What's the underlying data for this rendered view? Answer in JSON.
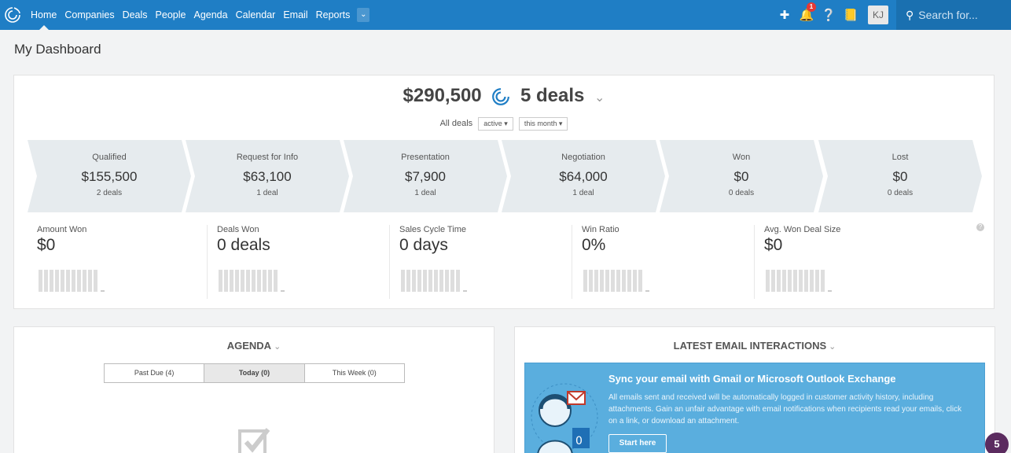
{
  "nav": {
    "items": [
      "Home",
      "Companies",
      "Deals",
      "People",
      "Agenda",
      "Calendar",
      "Email",
      "Reports"
    ],
    "active": "Home",
    "more_icon": "chevron-down-icon",
    "notification_count": "1",
    "avatar_initials": "KJ",
    "search_placeholder": "Search for..."
  },
  "page": {
    "title": "My Dashboard"
  },
  "summary": {
    "total": "$290,500",
    "deals": "5 deals",
    "filter_label": "All deals",
    "status_filter": "active",
    "period_filter": "this month"
  },
  "pipeline": [
    {
      "name": "Qualified",
      "value": "$155,500",
      "deals": "2 deals"
    },
    {
      "name": "Request for Info",
      "value": "$63,100",
      "deals": "1 deal"
    },
    {
      "name": "Presentation",
      "value": "$7,900",
      "deals": "1 deal"
    },
    {
      "name": "Negotiation",
      "value": "$64,000",
      "deals": "1 deal"
    },
    {
      "name": "Won",
      "value": "$0",
      "deals": "0 deals"
    },
    {
      "name": "Lost",
      "value": "$0",
      "deals": "0 deals"
    }
  ],
  "metrics": [
    {
      "label": "Amount Won",
      "value": "$0"
    },
    {
      "label": "Deals Won",
      "value": "0 deals"
    },
    {
      "label": "Sales Cycle Time",
      "value": "0 days"
    },
    {
      "label": "Win Ratio",
      "value": "0%"
    },
    {
      "label": "Avg. Won Deal Size",
      "value": "$0"
    }
  ],
  "agenda": {
    "title": "AGENDA",
    "tabs": [
      "Past Due (4)",
      "Today (0)",
      "This Week (0)"
    ],
    "active_tab": "Today (0)"
  },
  "email": {
    "title": "LATEST EMAIL INTERACTIONS",
    "promo_title": "Sync your email with Gmail or Microsoft Outlook Exchange",
    "promo_text": "All emails sent and received will be automatically logged in customer activity history, including attachments. Gain an unfair advantage with email notifications when recipients read your emails, click on a link, or download an attachment.",
    "button": "Start here"
  },
  "chat_bubble_count": "5",
  "colors": {
    "nav": "#1f7ec5",
    "promo": "#5aaede",
    "chat": "#5b2b5f"
  }
}
